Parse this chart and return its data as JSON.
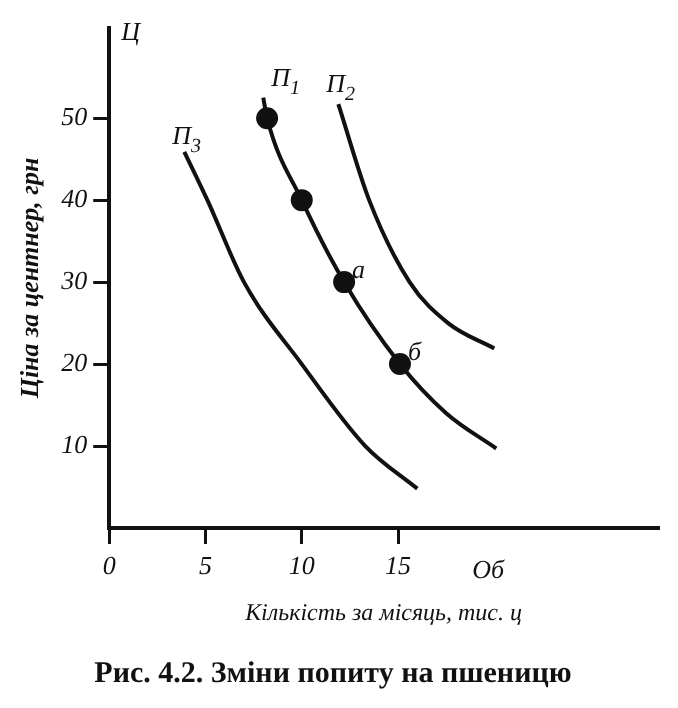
{
  "chart_data": {
    "type": "line",
    "title": "Рис. 4.2. Зміни попиту на пшеницю",
    "xlabel": "Кількість за місяць, тис. ц",
    "ylabel": "Ціна за центнер, грн",
    "xlim": [
      0,
      28.5
    ],
    "ylim": [
      0,
      61
    ],
    "xticks": [
      0,
      5,
      10,
      15
    ],
    "yticks": [
      10,
      20,
      30,
      40,
      50
    ],
    "grid": false,
    "legend": false,
    "marker": "none",
    "line_style": "solid",
    "annotations": [
      "Ц",
      "Об",
      {
        "text": "а",
        "x": 12.2,
        "y": 30
      },
      {
        "text": "б",
        "x": 15.1,
        "y": 20
      }
    ],
    "series": [
      {
        "name": "П$_{1}$",
        "color": "#111111",
        "x": [
          8.0,
          8.2,
          10,
          12.2,
          15.1,
          17.5,
          20.1
        ],
        "values": [
          52.5,
          50,
          40,
          30,
          20,
          14,
          9.7
        ]
      },
      {
        "name": "П$_{2}$",
        "color": "#111111",
        "x": [
          11.9,
          13.5,
          15.6,
          17.6,
          20.0
        ],
        "values": [
          51.7,
          40,
          30,
          25,
          21.9
        ]
      },
      {
        "name": "П$_{3}$",
        "color": "#111111",
        "x": [
          3.9,
          5.1,
          7.0,
          10.0,
          13.3,
          16.0
        ],
        "values": [
          45.9,
          40,
          30,
          20,
          10,
          4.8
        ]
      },
      {
        "type": "scatter",
        "marker": "circle",
        "color": "#111111",
        "x": [
          8.2,
          10,
          12.2,
          15.1
        ],
        "values": [
          50,
          40,
          30,
          20
        ]
      }
    ]
  }
}
